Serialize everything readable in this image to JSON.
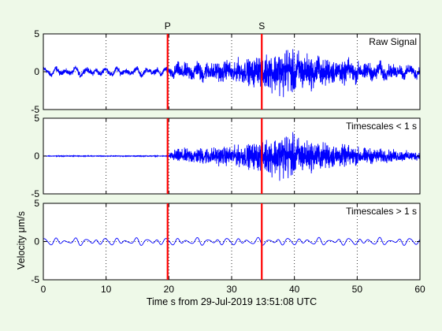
{
  "figure": {
    "background": "#eef9e8",
    "trace_color": "#0000ff",
    "marker_color": "#ff0000",
    "xlabel": "Time s from 29-Jul-2019 13:51:08 UTC",
    "ylabel": "Velocity μm/s",
    "markers": [
      {
        "label": "P",
        "x": 19.8
      },
      {
        "label": "S",
        "x": 34.8
      }
    ]
  },
  "chart_data": [
    {
      "type": "line",
      "title": "Raw Signal",
      "xlim": [
        0,
        60
      ],
      "ylim": [
        -5,
        5
      ],
      "xticks": [
        0,
        10,
        20,
        30,
        40,
        50,
        60
      ],
      "yticks": [
        -5,
        0,
        5
      ],
      "grid": "dotted",
      "description_of_series": "blue seismogram trace",
      "envelope": {
        "t": [
          0,
          19.8,
          21,
          25,
          30,
          33,
          35,
          37,
          38.5,
          40,
          42,
          45,
          50,
          55,
          60
        ],
        "amplitude": [
          0.5,
          0.5,
          1.4,
          1.7,
          1.9,
          2.4,
          3.2,
          3.8,
          4.6,
          4.0,
          3.2,
          2.6,
          1.8,
          1.3,
          1.0
        ]
      }
    },
    {
      "type": "line",
      "title": "Timescales < 1 s",
      "xlim": [
        0,
        60
      ],
      "ylim": [
        -5,
        5
      ],
      "xticks": [
        0,
        10,
        20,
        30,
        40,
        50,
        60
      ],
      "yticks": [
        -5,
        0,
        5
      ],
      "grid": "dotted",
      "envelope": {
        "t": [
          0,
          19.8,
          21,
          25,
          30,
          33,
          35,
          37,
          38.5,
          40,
          42,
          45,
          50,
          55,
          60
        ],
        "amplitude": [
          0.2,
          0.2,
          1.3,
          1.6,
          1.8,
          2.3,
          3.1,
          3.7,
          4.6,
          3.9,
          3.0,
          2.5,
          1.7,
          1.2,
          0.8
        ]
      }
    },
    {
      "type": "line",
      "title": "Timescales > 1 s",
      "xlim": [
        0,
        60
      ],
      "ylim": [
        -5,
        5
      ],
      "xticks": [
        0,
        10,
        20,
        30,
        40,
        50,
        60
      ],
      "yticks": [
        -5,
        0,
        5
      ],
      "grid": "dotted",
      "envelope": {
        "t": [
          0,
          20,
          30,
          40,
          50,
          60
        ],
        "amplitude": [
          0.45,
          0.45,
          0.45,
          0.55,
          0.5,
          0.45
        ]
      }
    }
  ]
}
